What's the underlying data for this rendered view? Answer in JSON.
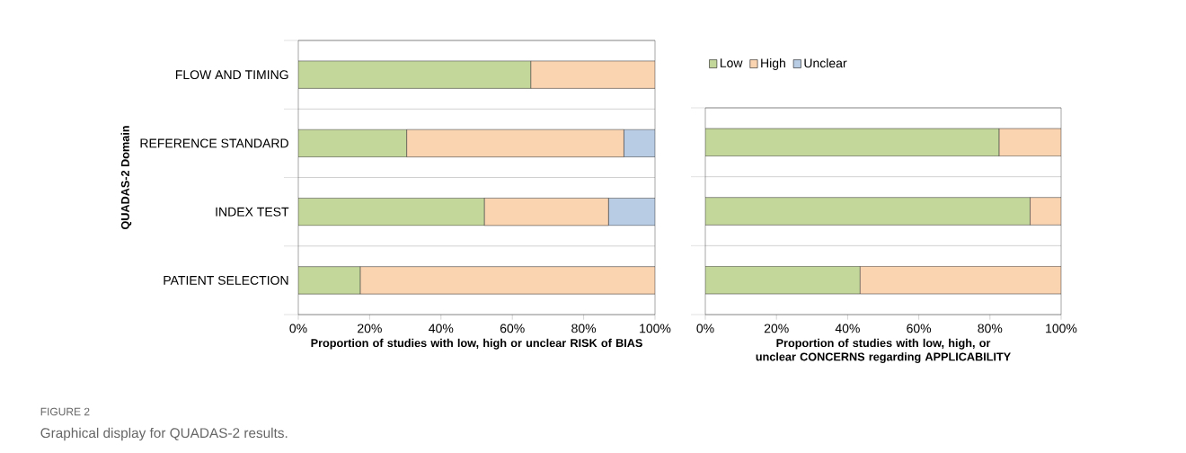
{
  "chart_data": [
    {
      "type": "bar",
      "orientation": "horizontal",
      "stacked": true,
      "categories": [
        "FLOW AND TIMING",
        "REFERENCE STANDARD",
        "INDEX TEST",
        "PATIENT SELECTION"
      ],
      "series": [
        {
          "color": "#c4d79b",
          "values": [
            65.2,
            30.4,
            52.2,
            17.4
          ]
        },
        {
          "color": "#fad3b1",
          "values": [
            34.8,
            60.9,
            34.8,
            82.6
          ]
        },
        {
          "color": "#b8cce4",
          "values": [
            null,
            8.7,
            13.0,
            null
          ]
        }
      ],
      "xlim": [
        0,
        100
      ],
      "xticks": [
        {
          "value": 0,
          "label": "0%"
        },
        {
          "value": 20,
          "label": "20%"
        },
        {
          "value": 40,
          "label": "40%"
        },
        {
          "value": 60,
          "label": "60%"
        },
        {
          "value": 80,
          "label": "80%"
        },
        {
          "value": 100,
          "label": "100%"
        }
      ],
      "xlabel": "Proportion of studies with low, high or unclear RISK of BIAS",
      "ylabel": "QUADAS-2 Domain",
      "grid": "y",
      "legend": false,
      "annotations": [
        "FIGURE 2",
        "Graphical display for QUADAS-2 results."
      ]
    },
    {
      "type": "bar",
      "orientation": "horizontal",
      "stacked": true,
      "categories": [
        null,
        null,
        null
      ],
      "series": [
        {
          "name": "Low",
          "color": "#c4d79b",
          "values": [
            82.6,
            91.3,
            43.5
          ]
        },
        {
          "name": "High",
          "color": "#fad3b1",
          "values": [
            17.4,
            8.7,
            56.5
          ]
        },
        {
          "name": "Unclear",
          "color": "#b8cce4",
          "values": [
            null,
            null,
            null
          ]
        }
      ],
      "xlim": [
        0,
        100
      ],
      "xticks": [
        {
          "value": 0,
          "label": "0%"
        },
        {
          "value": 20,
          "label": "20%"
        },
        {
          "value": 40,
          "label": "40%"
        },
        {
          "value": 60,
          "label": "60%"
        },
        {
          "value": 80,
          "label": "80%"
        },
        {
          "value": 100,
          "label": "100%"
        }
      ],
      "xlabel": "Proportion of studies with low, high, or unclear CONCERNS regarding APPLICABILITY",
      "grid": "y",
      "legend": "top left"
    }
  ]
}
